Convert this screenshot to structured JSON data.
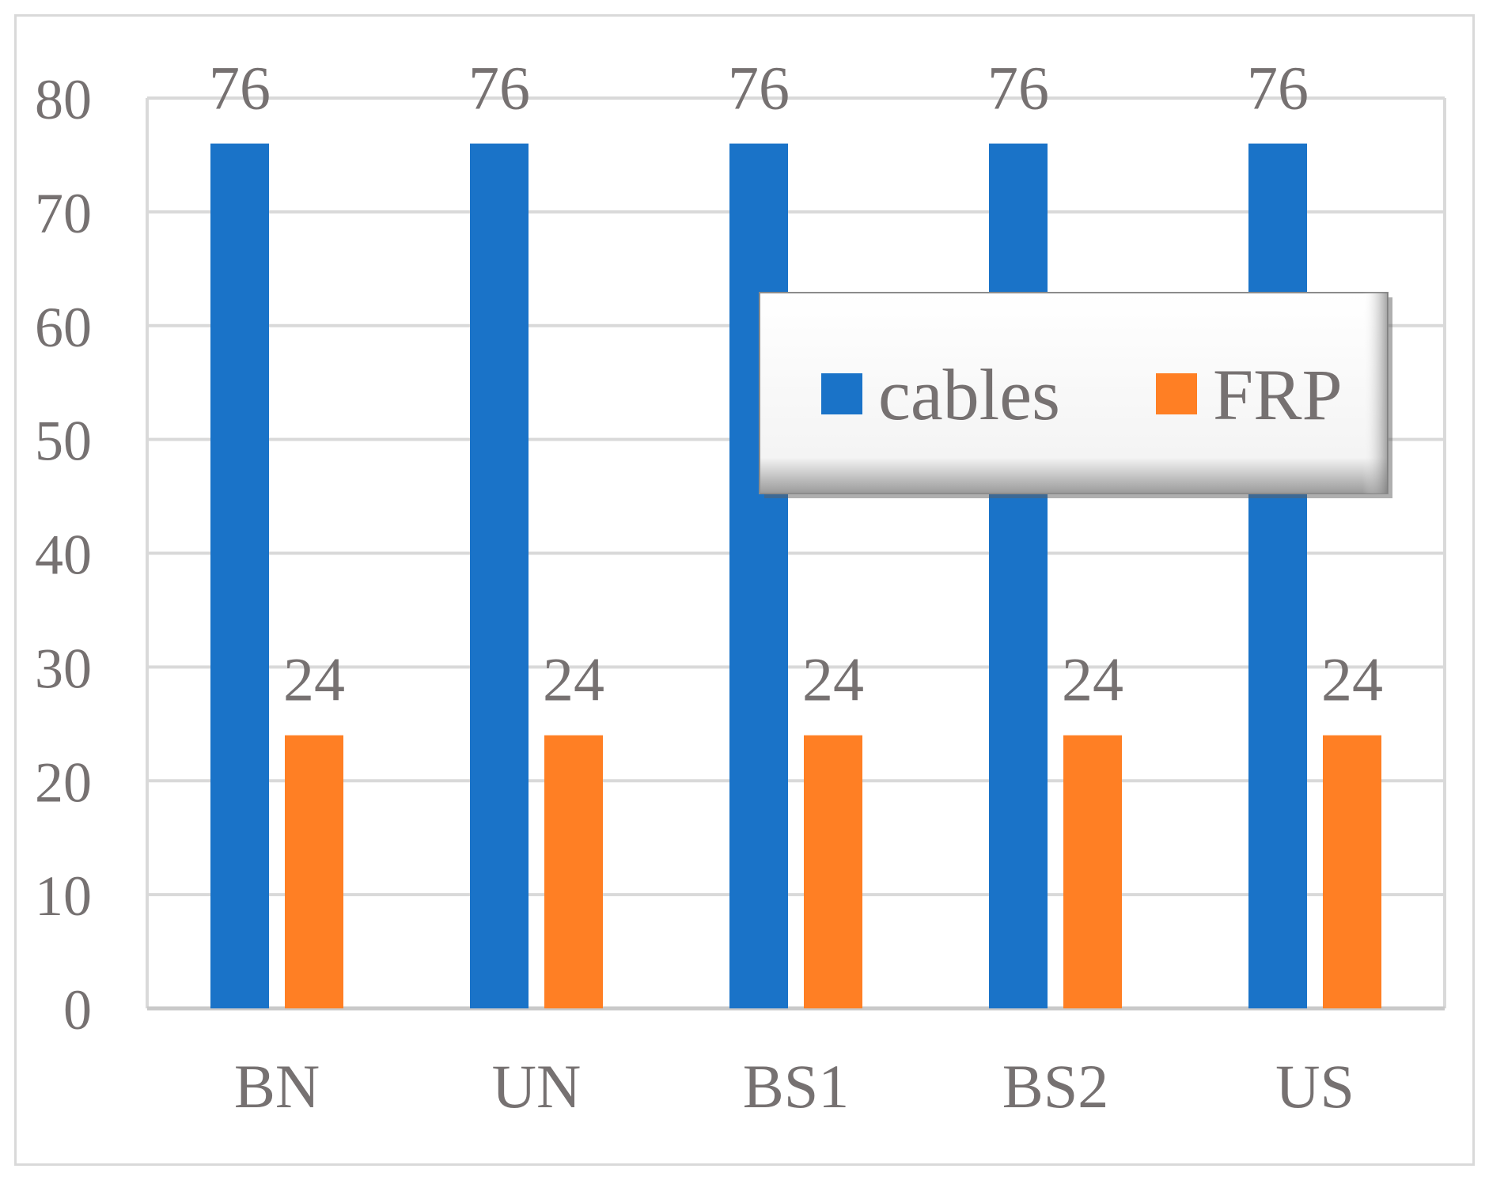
{
  "chart_data": {
    "type": "bar",
    "categories": [
      "BN",
      "UN",
      "BS1",
      "BS2",
      "US"
    ],
    "series": [
      {
        "name": "cables",
        "values": [
          76,
          76,
          76,
          76,
          76
        ],
        "color": "#1a73c8"
      },
      {
        "name": "FRP",
        "values": [
          24,
          24,
          24,
          24,
          24
        ],
        "color": "#ff7f24"
      }
    ],
    "ylim": [
      0,
      80
    ],
    "yticks": [
      0,
      10,
      20,
      30,
      40,
      50,
      60,
      70,
      80
    ],
    "data_labels": true,
    "grid": true,
    "legend": "upper-right inside plot"
  }
}
